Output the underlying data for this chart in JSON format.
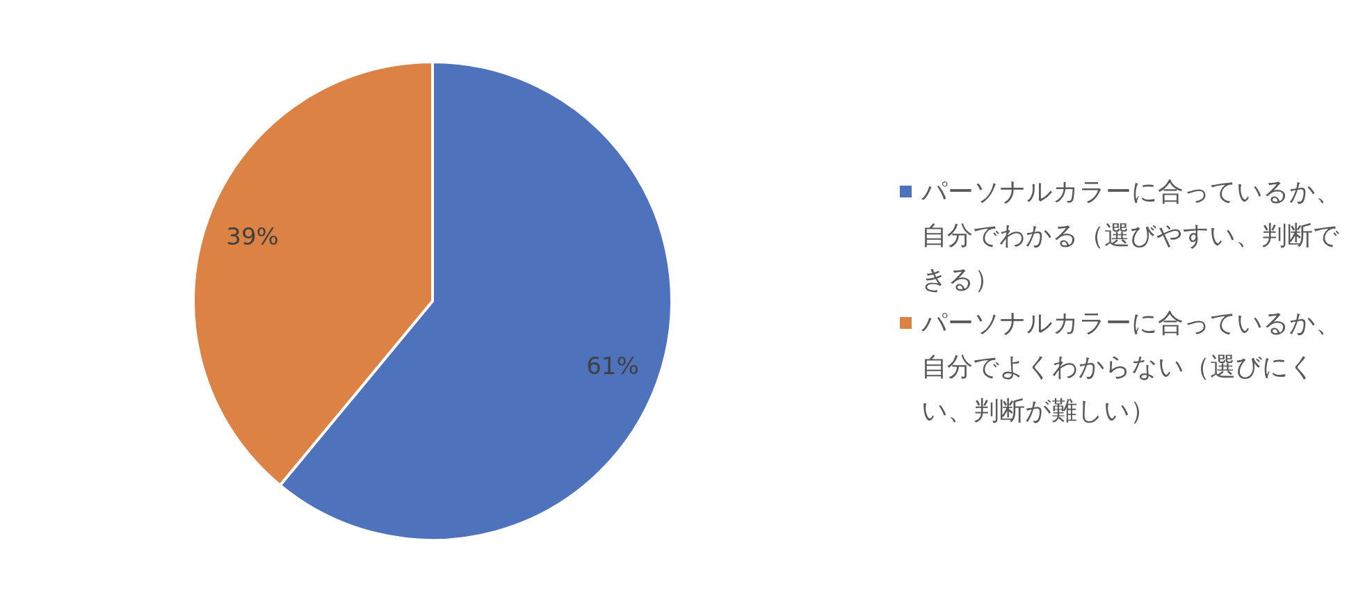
{
  "chart_data": {
    "type": "pie",
    "categories": [
      "パーソナルカラーに合っているか、自分でわかる（選びやすい、判断できる）",
      "パーソナルカラーに合っているか、自分でよくわからない（選びにくい、判断が難しい）"
    ],
    "values": [
      61,
      39
    ],
    "colors": [
      "#4e72bc",
      "#dc8244"
    ],
    "value_labels": [
      "61%",
      "39%"
    ],
    "legend": "right"
  }
}
